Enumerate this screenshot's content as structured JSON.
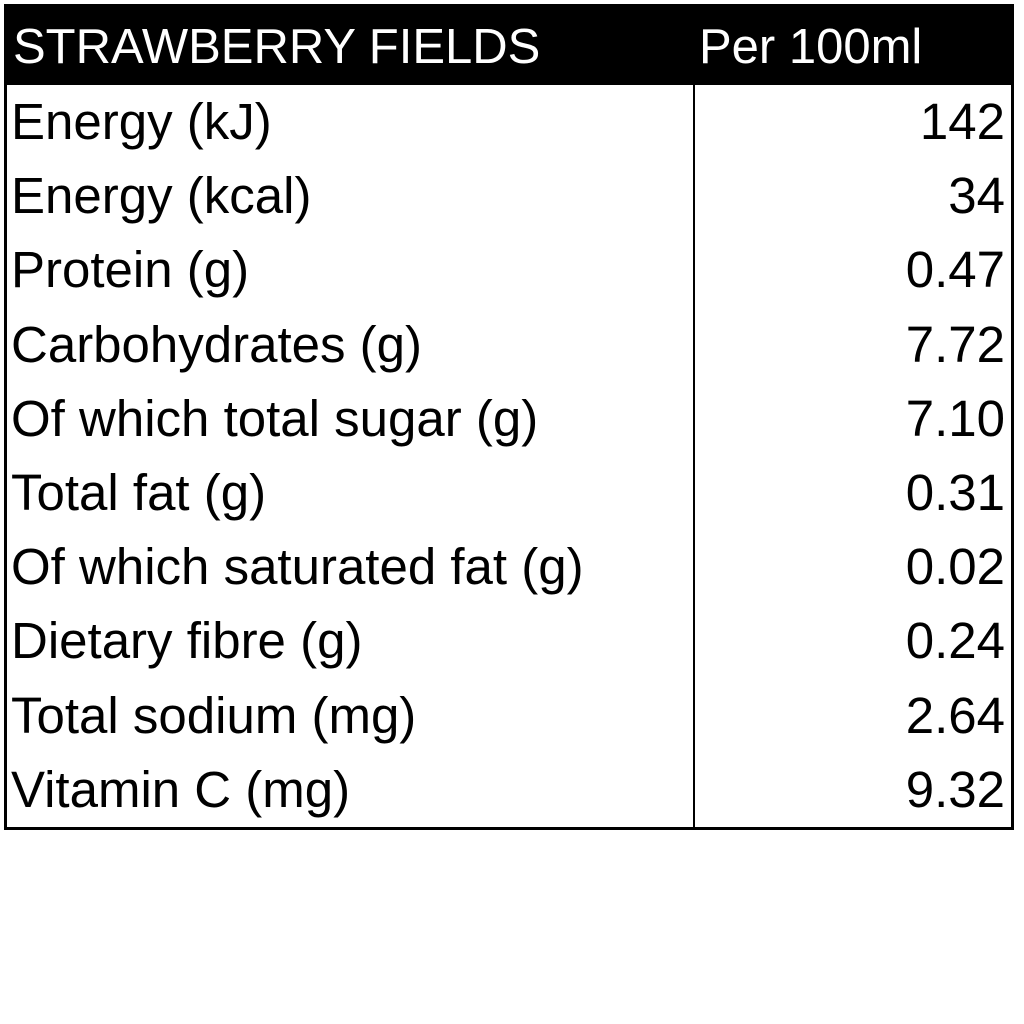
{
  "header": {
    "title": "STRAWBERRY FIELDS",
    "column": "Per 100ml"
  },
  "table": {
    "rows": [
      [
        "Energy (kJ)",
        "142"
      ],
      [
        "Energy (kcal)",
        "34"
      ],
      [
        "Protein (g)",
        "0.47"
      ],
      [
        "Carbohydrates (g)",
        "7.72"
      ],
      [
        "Of which total sugar (g)",
        "7.10"
      ],
      [
        "Total fat (g)",
        "0.31"
      ],
      [
        "Of which saturated fat (g)",
        "0.02"
      ],
      [
        "Dietary fibre (g)",
        "0.24"
      ],
      [
        "Total sodium (mg)",
        "2.64"
      ],
      [
        "Vitamin C (mg)",
        "9.32"
      ]
    ]
  }
}
